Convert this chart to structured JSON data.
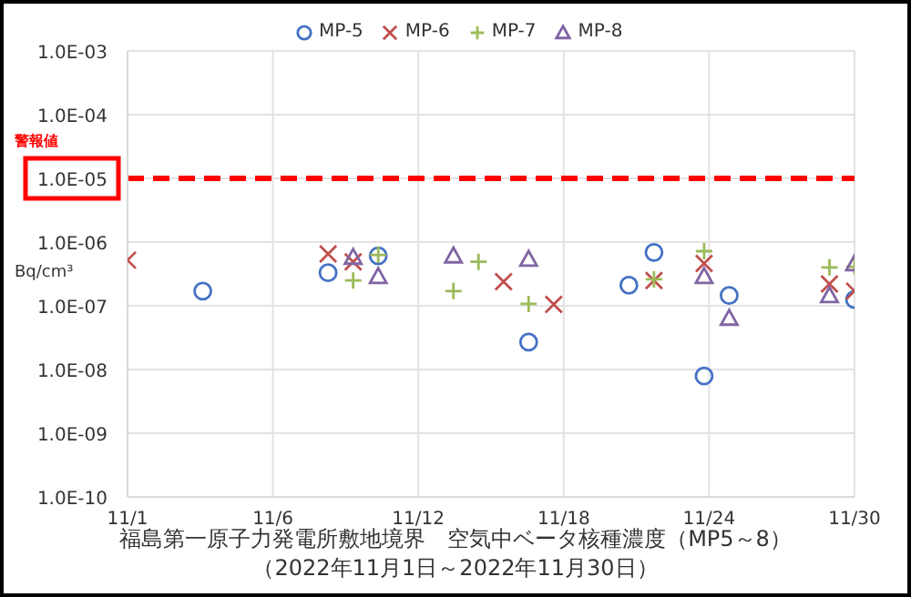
{
  "chart_data": {
    "type": "scatter",
    "title": "福島第一原子力発電所敷地境界　空気中ベータ核種濃度（MP5～8）",
    "subtitle": "（2022年11月1日～2022年11月30日）",
    "ylabel": "Bq/cm³",
    "log": "y",
    "grid": true,
    "legend": "top",
    "xlim": [
      "2022-11-01",
      "2022-11-30"
    ],
    "xticks": [
      {
        "value": "2022-11-01",
        "label": "11/1"
      },
      {
        "value": "2022-11-06T19:12",
        "label": "11/6"
      },
      {
        "value": "2022-11-12T14:24",
        "label": "11/12"
      },
      {
        "value": "2022-11-18T09:36",
        "label": "11/18"
      },
      {
        "value": "2022-11-24T04:48",
        "label": "11/24"
      },
      {
        "value": "2022-11-30",
        "label": "11/30"
      }
    ],
    "ylim": [
      1e-10,
      0.001
    ],
    "yticks": [
      {
        "value": 1e-10,
        "label": "1.0E-10"
      },
      {
        "value": 1e-09,
        "label": "1.0E-09"
      },
      {
        "value": 1e-08,
        "label": "1.0E-08"
      },
      {
        "value": 1e-07,
        "label": "1.0E-07"
      },
      {
        "value": 1e-06,
        "label": "1.0E-06"
      },
      {
        "value": 1e-05,
        "label": "1.0E-05"
      },
      {
        "value": 0.0001,
        "label": "1.0E-04"
      },
      {
        "value": 0.001,
        "label": "1.0E-03"
      }
    ],
    "ref_lines": [
      {
        "axis": "y",
        "value": 1e-05,
        "label": "警報値",
        "color": "#ff0000",
        "line_style": "dashed"
      }
    ],
    "series": [
      {
        "name": "MP-5",
        "color": "#4472c4",
        "marker": "circle",
        "x": [
          "2022-11-04",
          "2022-11-09",
          "2022-11-11",
          "2022-11-17",
          "2022-11-21",
          "2022-11-22",
          "2022-11-24",
          "2022-11-25",
          "2022-11-30"
        ],
        "values": [
          1.7e-07,
          3.3e-07,
          6.1e-07,
          2.7e-08,
          2.1e-07,
          6.9e-07,
          7.9e-09,
          1.45e-07,
          1.25e-07
        ]
      },
      {
        "name": "MP-6",
        "color": "#c0504d",
        "marker": "cross",
        "x": [
          "2022-11-01",
          "2022-11-09",
          "2022-11-10",
          "2022-11-16",
          "2022-11-18",
          "2022-11-22",
          "2022-11-24",
          "2022-11-29",
          "2022-11-30"
        ],
        "values": [
          5.2e-07,
          6.5e-07,
          4.9e-07,
          2.4e-07,
          1.05e-07,
          2.5e-07,
          4.6e-07,
          2.2e-07,
          1.7e-07
        ]
      },
      {
        "name": "MP-7",
        "color": "#9bbb59",
        "marker": "plus",
        "x": [
          "2022-11-10",
          "2022-11-11",
          "2022-11-14",
          "2022-11-15",
          "2022-11-17",
          "2022-11-22",
          "2022-11-24",
          "2022-11-29",
          "2022-11-30"
        ],
        "values": [
          2.5e-07,
          6.3e-07,
          1.7e-07,
          4.9e-07,
          1.07e-07,
          2.6e-07,
          7.2e-07,
          4e-07,
          4.1e-07
        ]
      },
      {
        "name": "MP-8",
        "color": "#8064a2",
        "marker": "triangle",
        "x": [
          "2022-11-10",
          "2022-11-11",
          "2022-11-14",
          "2022-11-17",
          "2022-11-24",
          "2022-11-25",
          "2022-11-29",
          "2022-11-30"
        ],
        "values": [
          5.8e-07,
          2.9e-07,
          6.1e-07,
          5.4e-07,
          2.9e-07,
          6.4e-08,
          1.45e-07,
          4.6e-07
        ]
      }
    ]
  }
}
